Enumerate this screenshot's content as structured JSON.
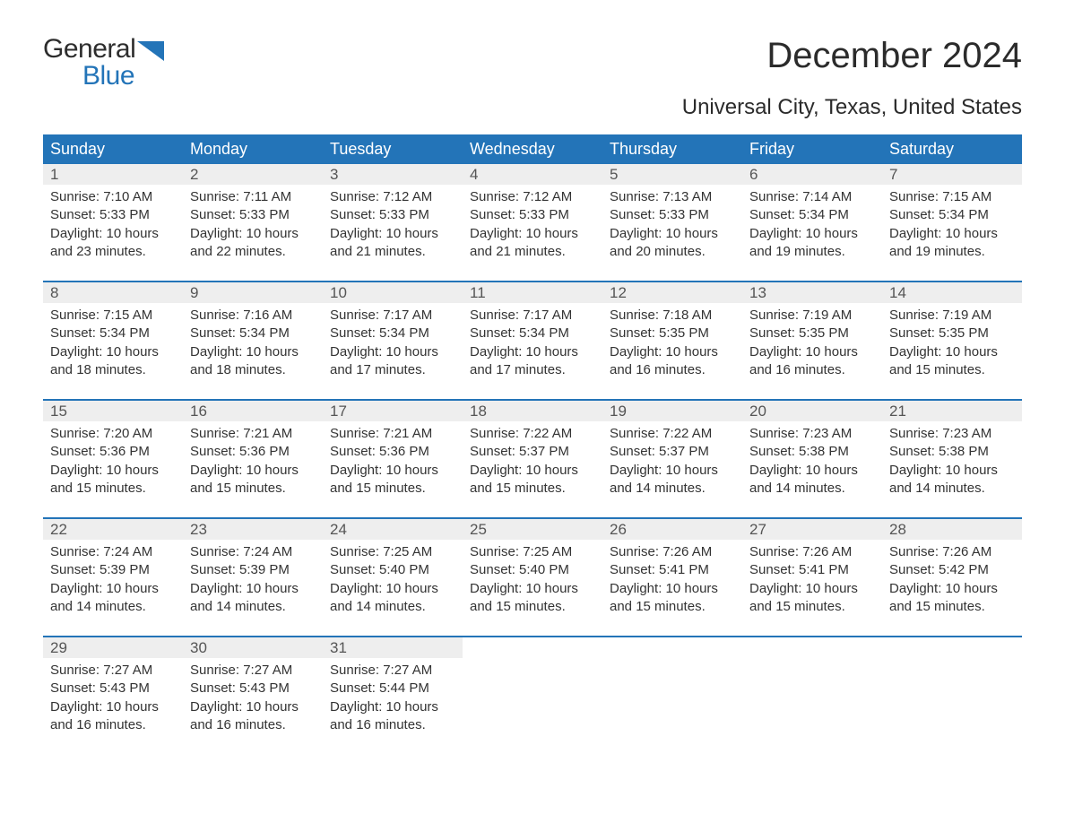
{
  "brand": {
    "general": "General",
    "blue": "Blue"
  },
  "title": "December 2024",
  "location": "Universal City, Texas, United States",
  "colors": {
    "header_blue": "#2374b8",
    "daynum_bg": "#eeeeee",
    "text": "#333333",
    "white": "#ffffff"
  },
  "fonts": {
    "title_size_pt": 30,
    "location_size_pt": 18,
    "header_size_pt": 13.5,
    "daynum_size_pt": 12.75,
    "detail_size_pt": 11.25
  },
  "days_of_week": [
    "Sunday",
    "Monday",
    "Tuesday",
    "Wednesday",
    "Thursday",
    "Friday",
    "Saturday"
  ],
  "weeks": [
    [
      {
        "n": "1",
        "sr": "Sunrise: 7:10 AM",
        "ss": "Sunset: 5:33 PM",
        "dl": "Daylight: 10 hours and 23 minutes."
      },
      {
        "n": "2",
        "sr": "Sunrise: 7:11 AM",
        "ss": "Sunset: 5:33 PM",
        "dl": "Daylight: 10 hours and 22 minutes."
      },
      {
        "n": "3",
        "sr": "Sunrise: 7:12 AM",
        "ss": "Sunset: 5:33 PM",
        "dl": "Daylight: 10 hours and 21 minutes."
      },
      {
        "n": "4",
        "sr": "Sunrise: 7:12 AM",
        "ss": "Sunset: 5:33 PM",
        "dl": "Daylight: 10 hours and 21 minutes."
      },
      {
        "n": "5",
        "sr": "Sunrise: 7:13 AM",
        "ss": "Sunset: 5:33 PM",
        "dl": "Daylight: 10 hours and 20 minutes."
      },
      {
        "n": "6",
        "sr": "Sunrise: 7:14 AM",
        "ss": "Sunset: 5:34 PM",
        "dl": "Daylight: 10 hours and 19 minutes."
      },
      {
        "n": "7",
        "sr": "Sunrise: 7:15 AM",
        "ss": "Sunset: 5:34 PM",
        "dl": "Daylight: 10 hours and 19 minutes."
      }
    ],
    [
      {
        "n": "8",
        "sr": "Sunrise: 7:15 AM",
        "ss": "Sunset: 5:34 PM",
        "dl": "Daylight: 10 hours and 18 minutes."
      },
      {
        "n": "9",
        "sr": "Sunrise: 7:16 AM",
        "ss": "Sunset: 5:34 PM",
        "dl": "Daylight: 10 hours and 18 minutes."
      },
      {
        "n": "10",
        "sr": "Sunrise: 7:17 AM",
        "ss": "Sunset: 5:34 PM",
        "dl": "Daylight: 10 hours and 17 minutes."
      },
      {
        "n": "11",
        "sr": "Sunrise: 7:17 AM",
        "ss": "Sunset: 5:34 PM",
        "dl": "Daylight: 10 hours and 17 minutes."
      },
      {
        "n": "12",
        "sr": "Sunrise: 7:18 AM",
        "ss": "Sunset: 5:35 PM",
        "dl": "Daylight: 10 hours and 16 minutes."
      },
      {
        "n": "13",
        "sr": "Sunrise: 7:19 AM",
        "ss": "Sunset: 5:35 PM",
        "dl": "Daylight: 10 hours and 16 minutes."
      },
      {
        "n": "14",
        "sr": "Sunrise: 7:19 AM",
        "ss": "Sunset: 5:35 PM",
        "dl": "Daylight: 10 hours and 15 minutes."
      }
    ],
    [
      {
        "n": "15",
        "sr": "Sunrise: 7:20 AM",
        "ss": "Sunset: 5:36 PM",
        "dl": "Daylight: 10 hours and 15 minutes."
      },
      {
        "n": "16",
        "sr": "Sunrise: 7:21 AM",
        "ss": "Sunset: 5:36 PM",
        "dl": "Daylight: 10 hours and 15 minutes."
      },
      {
        "n": "17",
        "sr": "Sunrise: 7:21 AM",
        "ss": "Sunset: 5:36 PM",
        "dl": "Daylight: 10 hours and 15 minutes."
      },
      {
        "n": "18",
        "sr": "Sunrise: 7:22 AM",
        "ss": "Sunset: 5:37 PM",
        "dl": "Daylight: 10 hours and 15 minutes."
      },
      {
        "n": "19",
        "sr": "Sunrise: 7:22 AM",
        "ss": "Sunset: 5:37 PM",
        "dl": "Daylight: 10 hours and 14 minutes."
      },
      {
        "n": "20",
        "sr": "Sunrise: 7:23 AM",
        "ss": "Sunset: 5:38 PM",
        "dl": "Daylight: 10 hours and 14 minutes."
      },
      {
        "n": "21",
        "sr": "Sunrise: 7:23 AM",
        "ss": "Sunset: 5:38 PM",
        "dl": "Daylight: 10 hours and 14 minutes."
      }
    ],
    [
      {
        "n": "22",
        "sr": "Sunrise: 7:24 AM",
        "ss": "Sunset: 5:39 PM",
        "dl": "Daylight: 10 hours and 14 minutes."
      },
      {
        "n": "23",
        "sr": "Sunrise: 7:24 AM",
        "ss": "Sunset: 5:39 PM",
        "dl": "Daylight: 10 hours and 14 minutes."
      },
      {
        "n": "24",
        "sr": "Sunrise: 7:25 AM",
        "ss": "Sunset: 5:40 PM",
        "dl": "Daylight: 10 hours and 14 minutes."
      },
      {
        "n": "25",
        "sr": "Sunrise: 7:25 AM",
        "ss": "Sunset: 5:40 PM",
        "dl": "Daylight: 10 hours and 15 minutes."
      },
      {
        "n": "26",
        "sr": "Sunrise: 7:26 AM",
        "ss": "Sunset: 5:41 PM",
        "dl": "Daylight: 10 hours and 15 minutes."
      },
      {
        "n": "27",
        "sr": "Sunrise: 7:26 AM",
        "ss": "Sunset: 5:41 PM",
        "dl": "Daylight: 10 hours and 15 minutes."
      },
      {
        "n": "28",
        "sr": "Sunrise: 7:26 AM",
        "ss": "Sunset: 5:42 PM",
        "dl": "Daylight: 10 hours and 15 minutes."
      }
    ],
    [
      {
        "n": "29",
        "sr": "Sunrise: 7:27 AM",
        "ss": "Sunset: 5:43 PM",
        "dl": "Daylight: 10 hours and 16 minutes."
      },
      {
        "n": "30",
        "sr": "Sunrise: 7:27 AM",
        "ss": "Sunset: 5:43 PM",
        "dl": "Daylight: 10 hours and 16 minutes."
      },
      {
        "n": "31",
        "sr": "Sunrise: 7:27 AM",
        "ss": "Sunset: 5:44 PM",
        "dl": "Daylight: 10 hours and 16 minutes."
      },
      null,
      null,
      null,
      null
    ]
  ]
}
